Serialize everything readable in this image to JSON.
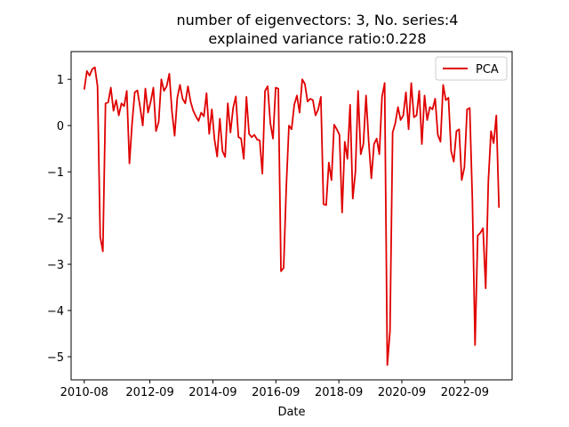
{
  "chart_data": {
    "type": "line",
    "title": "number of eigenvectors: 3, No. series:4",
    "subtitle": "explained variance ratio:0.228",
    "xlabel": "Date",
    "ylabel": "",
    "x_start": "2010-08",
    "x_end": "2023-10",
    "xlim": [
      "2010-03",
      "2024-03"
    ],
    "ylim": [
      -5.5,
      1.6
    ],
    "x_ticks": [
      "2010-08",
      "2012-09",
      "2014-09",
      "2016-09",
      "2018-09",
      "2020-09",
      "2022-09"
    ],
    "y_ticks": [
      1,
      0,
      -1,
      -2,
      -3,
      -4,
      -5
    ],
    "y_tick_labels": [
      "1",
      "0",
      "−1",
      "−2",
      "−3",
      "−4",
      "−5"
    ],
    "grid": false,
    "legend_position": "top-right",
    "colors": {
      "series": "#e00000"
    },
    "series": [
      {
        "name": "PCA",
        "values": [
          0.78,
          1.18,
          1.08,
          1.22,
          1.26,
          0.85,
          -2.4,
          -2.72,
          0.48,
          0.5,
          0.82,
          0.32,
          0.55,
          0.22,
          0.48,
          0.42,
          0.75,
          -0.82,
          0.05,
          0.72,
          0.76,
          0.4,
          0.0,
          0.8,
          0.28,
          0.52,
          0.82,
          -0.12,
          0.08,
          1.0,
          0.75,
          0.85,
          1.12,
          0.3,
          -0.22,
          0.6,
          0.88,
          0.58,
          0.48,
          0.85,
          0.52,
          0.32,
          0.2,
          0.1,
          0.28,
          0.2,
          0.7,
          -0.18,
          0.35,
          -0.3,
          -0.67,
          0.15,
          -0.55,
          -0.68,
          0.48,
          -0.15,
          0.38,
          0.63,
          -0.25,
          -0.28,
          -0.72,
          0.62,
          -0.18,
          -0.25,
          -0.2,
          -0.3,
          -0.32,
          -1.04,
          0.75,
          0.85,
          0.05,
          -0.28,
          0.82,
          0.8,
          -3.15,
          -3.08,
          -1.32,
          0.0,
          -0.08,
          0.45,
          0.65,
          0.28,
          1.0,
          0.9,
          0.52,
          0.58,
          0.55,
          0.22,
          0.35,
          0.62,
          -1.7,
          -1.72,
          -0.8,
          -1.18,
          0.02,
          -0.08,
          -0.2,
          -1.88,
          -0.35,
          -0.72,
          0.45,
          -1.58,
          -1.0,
          0.75,
          -0.62,
          -0.4,
          0.65,
          -0.35,
          -1.14,
          -0.4,
          -0.28,
          -0.62,
          0.62,
          0.92,
          -5.18,
          -4.45,
          -0.15,
          0.05,
          0.4,
          0.12,
          0.22,
          0.72,
          -0.08,
          0.92,
          0.18,
          0.22,
          0.75,
          -0.4,
          0.65,
          0.12,
          0.4,
          0.35,
          0.58,
          -0.2,
          -0.35,
          0.88,
          0.55,
          0.6,
          -0.55,
          -0.78,
          -0.12,
          -0.08,
          -1.18,
          -0.9,
          0.35,
          0.38,
          -1.62,
          -4.75,
          -2.38,
          -2.32,
          -2.22,
          -3.52,
          -1.2,
          -0.12,
          -0.38,
          0.22,
          -1.78
        ]
      }
    ]
  }
}
